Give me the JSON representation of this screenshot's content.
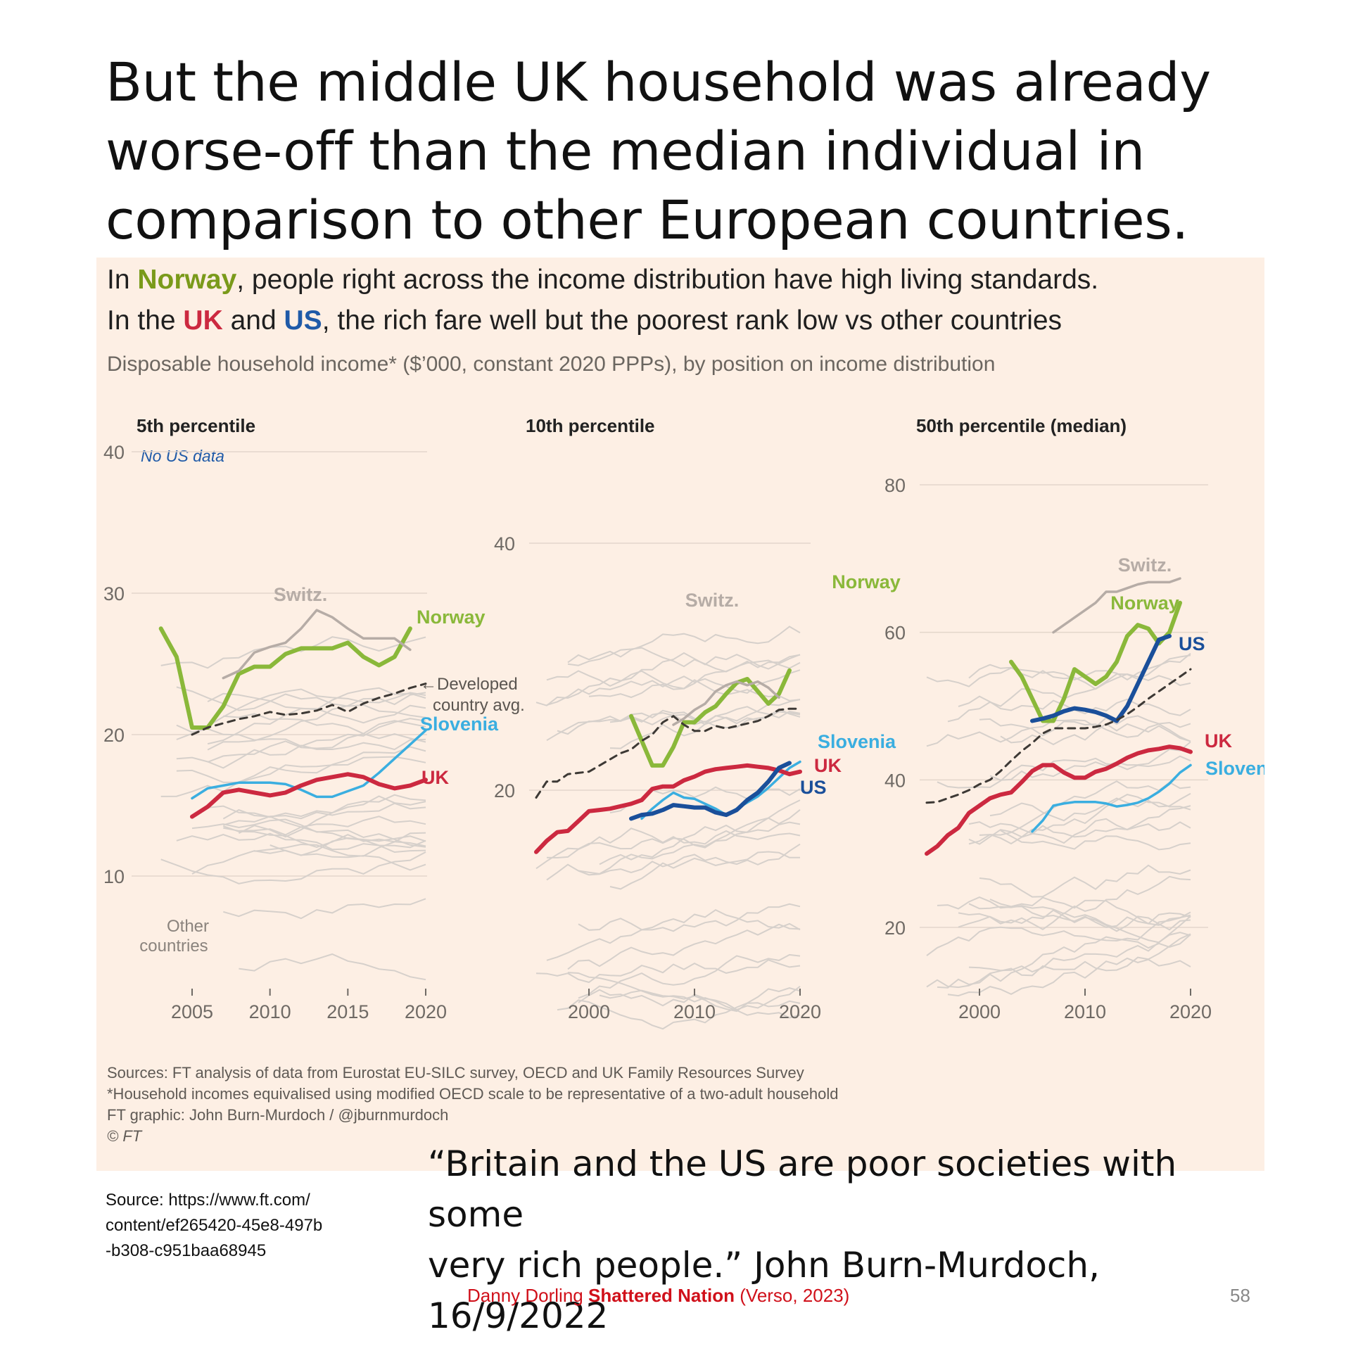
{
  "slide": {
    "title_line1": "But the middle UK household was already",
    "title_line2": "worse-off than the median individual in",
    "title_line3": "comparison to other European countries.",
    "source_line1": "Source: https://www.ft.com/",
    "source_line2": "content/ef265420-45e8-497b",
    "source_line3": "-b308-c951baa68945",
    "quote_line1": "“Britain and the US are poor societies with some",
    "quote_line2": "very rich people.” John Burn-Murdoch, 16/9/2022",
    "footer_author": "Danny Dorling",
    "footer_book": "Shattered Nation",
    "footer_publisher": "(Verso, 2023)",
    "page_number": "58"
  },
  "figure": {
    "headline1_pre": "In ",
    "headline1_norway": "Norway",
    "headline1_post": ", people right across the income distribution have high living standards.",
    "headline2_pre": "In the ",
    "headline2_uk": "UK",
    "headline2_and": " and ",
    "headline2_us": "US",
    "headline2_post": ", the rich fare well but the poorest rank low vs other countries",
    "subtitle": "Disposable household income* ($’000, constant 2020 PPPs), by position on income distribution",
    "note1": "Sources: FT analysis of data from Eurostat EU-SILC survey, OECD and UK Family Resources Survey",
    "note2": "*Household incomes equivalised using modified OECD scale to be representative of a two-adult household",
    "note3": "FT graphic: John Burn-Murdoch / @jburnmurdoch",
    "note4": "© FT"
  },
  "colors": {
    "norway": "#8ab83a",
    "uk": "#cc2940",
    "us": "#1a4f9a",
    "slovenia": "#3aaee0",
    "switz": "#b6aca6",
    "other": "#d6d0cb",
    "avg": "#3d3935"
  },
  "chart_data": [
    {
      "type": "line",
      "title": "5th percentile",
      "note": "No US data",
      "ylim": [
        0,
        40
      ],
      "yticks": [
        10,
        20,
        30,
        40
      ],
      "xlim": [
        2003,
        2021
      ],
      "xticks": [
        2005,
        2010,
        2015,
        2020
      ],
      "annotations": {
        "other": "Other countries",
        "avg": "←Developed country avg."
      },
      "series": [
        {
          "name": "Norway",
          "key": "norway",
          "label": "Norway",
          "x": [
            2003,
            2004,
            2005,
            2006,
            2007,
            2008,
            2009,
            2010,
            2011,
            2012,
            2013,
            2014,
            2015,
            2016,
            2017,
            2018,
            2019
          ],
          "y": [
            27.5,
            25.5,
            20.5,
            20.5,
            22,
            24.3,
            24.8,
            24.8,
            25.7,
            26.1,
            26.1,
            26.1,
            26.5,
            25.5,
            24.9,
            25.5,
            27.5
          ]
        },
        {
          "name": "Switz.",
          "key": "switz",
          "label": "Switz.",
          "x": [
            2007,
            2008,
            2009,
            2010,
            2011,
            2012,
            2013,
            2014,
            2015,
            2016,
            2017,
            2018,
            2019
          ],
          "y": [
            24,
            24.5,
            25.8,
            26.2,
            26.5,
            27.5,
            28.8,
            28.3,
            27.5,
            26.8,
            26.8,
            26.8,
            26
          ]
        },
        {
          "name": "Developed country avg.",
          "key": "avg",
          "label": "",
          "x": [
            2005,
            2006,
            2007,
            2008,
            2009,
            2010,
            2011,
            2012,
            2013,
            2014,
            2015,
            2016,
            2017,
            2018,
            2019,
            2020
          ],
          "y": [
            20,
            20.5,
            20.8,
            21.1,
            21.3,
            21.6,
            21.4,
            21.5,
            21.7,
            22.1,
            21.6,
            22.2,
            22.6,
            22.9,
            23.3,
            23.6
          ]
        },
        {
          "name": "Slovenia",
          "key": "slovenia",
          "label": "Slovenia",
          "x": [
            2005,
            2006,
            2007,
            2008,
            2009,
            2010,
            2011,
            2012,
            2013,
            2014,
            2015,
            2016,
            2017,
            2018,
            2019,
            2020
          ],
          "y": [
            15.5,
            16.2,
            16.4,
            16.6,
            16.6,
            16.6,
            16.5,
            16.1,
            15.6,
            15.6,
            16,
            16.4,
            17.3,
            18.3,
            19.3,
            20.3
          ]
        },
        {
          "name": "UK",
          "key": "uk",
          "label": "UK",
          "x": [
            2005,
            2006,
            2007,
            2008,
            2009,
            2010,
            2011,
            2012,
            2013,
            2014,
            2015,
            2016,
            2017,
            2018,
            2019,
            2020
          ],
          "y": [
            14.2,
            14.9,
            15.9,
            16.1,
            15.9,
            15.7,
            15.9,
            16.4,
            16.8,
            17,
            17.2,
            17,
            16.5,
            16.2,
            16.4,
            16.8
          ]
        }
      ]
    },
    {
      "type": "line",
      "title": "10th percentile",
      "ylim": [
        0,
        40
      ],
      "yticks": [
        20,
        40
      ],
      "xlim": [
        1995,
        2021
      ],
      "xticks": [
        2000,
        2010,
        2020
      ],
      "series": [
        {
          "name": "Norway",
          "key": "norway",
          "label": "Norway",
          "x": [
            2004,
            2005,
            2006,
            2007,
            2008,
            2009,
            2010,
            2011,
            2012,
            2013,
            2014,
            2015,
            2016,
            2017,
            2018,
            2019
          ],
          "y": [
            26,
            24,
            22,
            22,
            23.5,
            25.5,
            25.5,
            26.3,
            26.8,
            27.8,
            28.7,
            29,
            28,
            27,
            27.8,
            29.7
          ]
        },
        {
          "name": "Switz.",
          "key": "switz",
          "label": "Switz.",
          "x": [
            2008,
            2009,
            2010,
            2011,
            2012,
            2013,
            2014,
            2015,
            2016,
            2017,
            2018
          ],
          "y": [
            25.3,
            25.8,
            26.5,
            27,
            28,
            28.5,
            28.8,
            28.5,
            28.8,
            28.3,
            27.5
          ]
        },
        {
          "name": "Developed country avg.",
          "key": "avg",
          "label": "",
          "x": [
            1995,
            1996,
            1997,
            1998,
            1999,
            2000,
            2001,
            2002,
            2003,
            2004,
            2005,
            2006,
            2007,
            2008,
            2009,
            2010,
            2011,
            2012,
            2013,
            2014,
            2015,
            2016,
            2017,
            2018,
            2019,
            2020
          ],
          "y": [
            19.4,
            20.7,
            20.7,
            21.3,
            21.4,
            21.5,
            22,
            22.5,
            23,
            23.3,
            24,
            24.5,
            25.5,
            26,
            25.3,
            24.8,
            24.8,
            25.2,
            25,
            25.2,
            25.4,
            25.6,
            26,
            26.5,
            26.6,
            26.6
          ]
        },
        {
          "name": "Slovenia",
          "key": "slovenia",
          "label": "Slovenia",
          "x": [
            2005,
            2006,
            2007,
            2008,
            2009,
            2010,
            2011,
            2012,
            2013,
            2014,
            2015,
            2016,
            2017,
            2018,
            2019,
            2020
          ],
          "y": [
            17.7,
            18.5,
            19.2,
            19.8,
            19.4,
            19.3,
            18.9,
            18.5,
            18,
            18.5,
            19,
            19.5,
            20.2,
            21,
            21.8,
            22.3
          ]
        },
        {
          "name": "UK",
          "key": "uk",
          "label": "UK",
          "x": [
            1995,
            1996,
            1997,
            1998,
            1999,
            2000,
            2001,
            2002,
            2003,
            2004,
            2005,
            2006,
            2007,
            2008,
            2009,
            2010,
            2011,
            2012,
            2013,
            2014,
            2015,
            2016,
            2017,
            2018,
            2019,
            2020
          ],
          "y": [
            15,
            15.9,
            16.6,
            16.7,
            17.5,
            18.3,
            18.4,
            18.5,
            18.7,
            18.9,
            19.2,
            20.1,
            20.3,
            20.3,
            20.8,
            21.1,
            21.5,
            21.7,
            21.8,
            21.9,
            22,
            21.9,
            21.8,
            21.6,
            21.3,
            21.5
          ]
        },
        {
          "name": "US",
          "key": "us",
          "label": "US",
          "x": [
            2004,
            2005,
            2006,
            2007,
            2008,
            2009,
            2010,
            2011,
            2012,
            2013,
            2014,
            2015,
            2016,
            2017,
            2018,
            2019
          ],
          "y": [
            17.7,
            18,
            18.1,
            18.4,
            18.8,
            18.7,
            18.6,
            18.6,
            18.2,
            18,
            18.4,
            19.2,
            19.8,
            20.7,
            21.8,
            22.2
          ]
        }
      ]
    },
    {
      "type": "line",
      "title": "50th percentile (median)",
      "ylim": [
        0,
        80
      ],
      "yticks": [
        20,
        40,
        60,
        80
      ],
      "xlim": [
        1995,
        2021
      ],
      "xticks": [
        2000,
        2010,
        2020
      ],
      "series": [
        {
          "name": "Switz.",
          "key": "switz",
          "label": "Switz.",
          "x": [
            2007,
            2008,
            2009,
            2010,
            2011,
            2012,
            2013,
            2014,
            2015,
            2016,
            2017,
            2018,
            2019
          ],
          "y": [
            60,
            61,
            62,
            63,
            64,
            65.5,
            65.5,
            66,
            66.5,
            66.8,
            66.8,
            66.8,
            67.3
          ]
        },
        {
          "name": "Norway",
          "key": "norway",
          "label": "Norway",
          "x": [
            2003,
            2004,
            2005,
            2006,
            2007,
            2008,
            2009,
            2010,
            2011,
            2012,
            2013,
            2014,
            2015,
            2016,
            2017,
            2018,
            2019
          ],
          "y": [
            56,
            54,
            51,
            48,
            48,
            51,
            55,
            54,
            53,
            54,
            56,
            59.5,
            61,
            60.5,
            58.5,
            60,
            64
          ]
        },
        {
          "name": "US",
          "key": "us",
          "label": "US",
          "x": [
            2005,
            2006,
            2007,
            2008,
            2009,
            2010,
            2011,
            2012,
            2013,
            2014,
            2015,
            2016,
            2017,
            2018
          ],
          "y": [
            48,
            48.3,
            48.7,
            49.3,
            49.7,
            49.5,
            49.2,
            48.7,
            48,
            50,
            53,
            56,
            59,
            59.5
          ]
        },
        {
          "name": "Developed country avg.",
          "key": "avg",
          "label": "",
          "x": [
            1995,
            1996,
            1997,
            1998,
            1999,
            2000,
            2001,
            2002,
            2003,
            2004,
            2005,
            2006,
            2007,
            2008,
            2009,
            2010,
            2011,
            2012,
            2013,
            2014,
            2015,
            2016,
            2017,
            2018,
            2019,
            2020
          ],
          "y": [
            36.9,
            37,
            37.5,
            38,
            38.6,
            39.4,
            40,
            41.2,
            42.6,
            43.9,
            45,
            46.3,
            47,
            47,
            47,
            47,
            47.2,
            47.5,
            48.1,
            48.9,
            49.9,
            51,
            52,
            53,
            54,
            55
          ]
        },
        {
          "name": "UK",
          "key": "uk",
          "label": "UK",
          "x": [
            1995,
            1996,
            1997,
            1998,
            1999,
            2000,
            2001,
            2002,
            2003,
            2004,
            2005,
            2006,
            2007,
            2008,
            2009,
            2010,
            2011,
            2012,
            2013,
            2014,
            2015,
            2016,
            2017,
            2018,
            2019,
            2020
          ],
          "y": [
            30,
            31,
            32.5,
            33.5,
            35.5,
            36.5,
            37.5,
            38,
            38.3,
            39.7,
            41.2,
            42,
            42,
            41,
            40.3,
            40.3,
            41.1,
            41.5,
            42.2,
            43,
            43.6,
            44,
            44.2,
            44.5,
            44.3,
            43.8
          ]
        },
        {
          "name": "Slovenia",
          "key": "slovenia",
          "label": "Slovenia",
          "x": [
            2005,
            2006,
            2007,
            2008,
            2009,
            2010,
            2011,
            2012,
            2013,
            2014,
            2015,
            2016,
            2017,
            2018,
            2019,
            2020
          ],
          "y": [
            33,
            34.5,
            36.5,
            36.8,
            37,
            37,
            37,
            36.8,
            36.4,
            36.6,
            36.9,
            37.5,
            38.4,
            39.5,
            41,
            42
          ]
        }
      ]
    }
  ]
}
